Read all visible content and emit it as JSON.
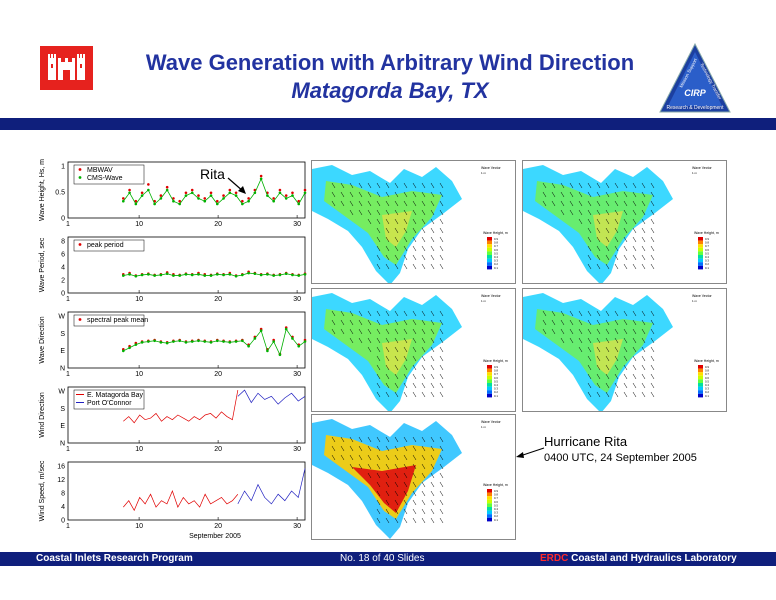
{
  "title": "Wave Generation with Arbitrary Wind Direction",
  "subtitle": "Matagorda Bay, TX",
  "cirp_badge": {
    "label": "CIRP",
    "text_left": "Mission Support",
    "text_right": "Technology Transfer",
    "text_bottom": "Research & Development"
  },
  "annotations": {
    "rita": "Rita",
    "hurricane_title": "Hurricane Rita",
    "hurricane_time": "0400 UTC, 24 September 2005"
  },
  "footer": {
    "left": "Coastal Inlets Research Program",
    "middle": "No. 18 of 40 Slides",
    "right_prefix": "ERDC",
    "right_rest": " Coastal and Hydraulics Laboratory"
  },
  "maps": {
    "legend_title": "Wave Height, m",
    "legend_values": [
      "0.9",
      "0.8",
      "0.7",
      "0.6",
      "0.5",
      "0.4",
      "0.3",
      "0.2",
      "0.1"
    ],
    "vector_title": "Wave Vector",
    "vector_scale": "1 m"
  },
  "chart_data": [
    {
      "type": "scatter",
      "ylabel": "Wave Height, Hs, m",
      "yticks": [
        "0",
        "0.5",
        "1"
      ],
      "xticks": [
        "10",
        "20",
        "30"
      ],
      "xlim": [
        1,
        31
      ],
      "ylim": [
        0,
        1
      ],
      "series": [
        {
          "name": "MBWAV",
          "color": "#e00000",
          "values": [
            0.35,
            0.5,
            0.3,
            0.45,
            0.6,
            0.3,
            0.4,
            0.55,
            0.35,
            0.3,
            0.45,
            0.5,
            0.4,
            0.35,
            0.45,
            0.3,
            0.4,
            0.5,
            0.45,
            0.3,
            0.35,
            0.5,
            0.75,
            0.45,
            0.35,
            0.5,
            0.4,
            0.45,
            0.3,
            0.5
          ]
        },
        {
          "name": "CMS-Wave",
          "color": "#00b000",
          "values": [
            0.3,
            0.45,
            0.25,
            0.4,
            0.5,
            0.25,
            0.35,
            0.5,
            0.3,
            0.25,
            0.4,
            0.45,
            0.35,
            0.3,
            0.4,
            0.25,
            0.35,
            0.45,
            0.4,
            0.25,
            0.3,
            0.45,
            0.7,
            0.4,
            0.3,
            0.45,
            0.35,
            0.4,
            0.25,
            0.45
          ]
        }
      ]
    },
    {
      "type": "scatter",
      "ylabel": "Wave Period, sec",
      "yticks": [
        "0",
        "2",
        "4",
        "6",
        "8"
      ],
      "xticks": [
        "10",
        "20",
        "30"
      ],
      "xlim": [
        1,
        31
      ],
      "ylim": [
        0,
        9
      ],
      "series": [
        {
          "name": "peak period",
          "color": "#e00000",
          "values": [
            3,
            3.2,
            2.8,
            3,
            3.1,
            2.9,
            3,
            3.3,
            3,
            2.9,
            3.1,
            3,
            3.2,
            3,
            2.9,
            3.1,
            3,
            3.2,
            2.8,
            3,
            3.4,
            3.2,
            3,
            3.1,
            2.9,
            3,
            3.2,
            3,
            2.9,
            3.1
          ]
        },
        {
          "name": "",
          "color": "#00b000",
          "values": [
            2.8,
            3,
            2.7,
            2.9,
            3,
            2.8,
            2.9,
            3.1,
            2.8,
            2.8,
            3,
            2.9,
            3,
            2.8,
            2.8,
            3,
            2.9,
            3,
            2.7,
            2.9,
            3.2,
            3.1,
            2.9,
            3,
            2.8,
            2.9,
            3.1,
            2.9,
            2.8,
            3
          ]
        }
      ]
    },
    {
      "type": "scatter",
      "ylabel": "Wave Direction",
      "yticks": [
        "N",
        "E",
        "S",
        "W"
      ],
      "xticks": [
        "10",
        "20",
        "30"
      ],
      "xlim": [
        1,
        31
      ],
      "ylim": [
        0,
        360
      ],
      "series": [
        {
          "name": "spectral peak mean",
          "color": "#e00000",
          "values": [
            120,
            140,
            160,
            170,
            175,
            180,
            170,
            165,
            175,
            180,
            170,
            175,
            180,
            175,
            170,
            180,
            175,
            170,
            175,
            180,
            150,
            200,
            250,
            120,
            180,
            90,
            260,
            200,
            150,
            180
          ]
        },
        {
          "name": "",
          "color": "#00b000",
          "values": [
            110,
            130,
            150,
            165,
            170,
            175,
            165,
            160,
            170,
            175,
            165,
            170,
            175,
            170,
            165,
            175,
            170,
            165,
            170,
            175,
            140,
            190,
            240,
            110,
            170,
            85,
            250,
            190,
            140,
            170
          ]
        }
      ]
    },
    {
      "type": "line",
      "ylabel": "Wind Direction",
      "yticks": [
        "N",
        "E",
        "S",
        "W"
      ],
      "xticks": [
        "10",
        "20",
        "30"
      ],
      "xlim": [
        1,
        31
      ],
      "ylim": [
        0,
        360
      ],
      "series": [
        {
          "name": "E. Matagorda Bay",
          "color": "#e00000",
          "values": [
            140,
            170,
            130,
            180,
            150,
            160,
            190,
            140,
            170,
            150,
            180,
            160,
            140,
            170,
            150,
            180,
            190,
            160,
            200,
            170,
            150,
            340
          ]
        },
        {
          "name": "Port O'Connor",
          "color": "#2020c0",
          "values": [
            300,
            340,
            260,
            320,
            280,
            300,
            250,
            290,
            320,
            270,
            300
          ]
        }
      ]
    },
    {
      "type": "line",
      "ylabel": "Wind Speed, m/sec",
      "yticks": [
        "0",
        "4",
        "8",
        "12",
        "16"
      ],
      "xticks": [
        "10",
        "20",
        "30"
      ],
      "xlabel": "September 2005",
      "xlim": [
        1,
        31
      ],
      "ylim": [
        0,
        18
      ],
      "series": [
        {
          "name": "",
          "color": "#e00000",
          "values": [
            4,
            6,
            3,
            7,
            5,
            8,
            4,
            6,
            5,
            9,
            4,
            7,
            5,
            6,
            4,
            8,
            5,
            6,
            7,
            5,
            6,
            8
          ]
        },
        {
          "name": "",
          "color": "#2020c0",
          "values": [
            5,
            9,
            6,
            11,
            7,
            5,
            8,
            6,
            9,
            7,
            16
          ]
        }
      ]
    }
  ]
}
